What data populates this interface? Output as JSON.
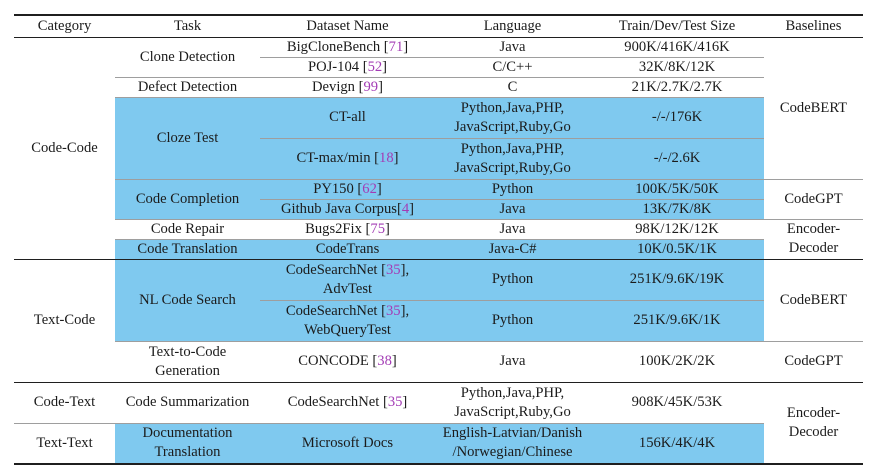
{
  "table": {
    "columns": [
      "Category",
      "Task",
      "Dataset Name",
      "Language",
      "Train/Dev/Test Size",
      "Baselines"
    ],
    "rows": [
      {
        "category": "Code-Code",
        "task": [
          "Clone Detection"
        ],
        "dataset": {
          "pre": "BigCloneBench [",
          "cite": "71",
          "post": "]"
        },
        "language": [
          "Java"
        ],
        "size": "900K/416K/416K",
        "baseline": [
          "CodeBERT"
        ]
      },
      {
        "dataset": {
          "pre": "POJ-104 [",
          "cite": "52",
          "post": "]"
        },
        "language": [
          "C/C++"
        ],
        "size": "32K/8K/12K"
      },
      {
        "task": [
          "Defect Detection"
        ],
        "dataset": {
          "pre": "Devign [",
          "cite": "99",
          "post": "]"
        },
        "language": [
          "C"
        ],
        "size": "21K/2.7K/2.7K"
      },
      {
        "task": [
          "Cloze Test"
        ],
        "dataset": {
          "pre": "CT-all"
        },
        "language": [
          "Python,Java,PHP,",
          "JavaScript,Ruby,Go"
        ],
        "size": "-/-/176K"
      },
      {
        "dataset": {
          "pre": "CT-max/min [",
          "cite": "18",
          "post": "]"
        },
        "language": [
          "Python,Java,PHP,",
          "JavaScript,Ruby,Go"
        ],
        "size": "-/-/2.6K"
      },
      {
        "task": [
          "Code Completion"
        ],
        "dataset": {
          "pre": "PY150 [",
          "cite": "62",
          "post": "]"
        },
        "language": [
          "Python"
        ],
        "size": "100K/5K/50K",
        "baseline": [
          "CodeGPT"
        ]
      },
      {
        "dataset": {
          "pre": "Github Java Corpus[",
          "cite": "4",
          "post": "]"
        },
        "language": [
          "Java"
        ],
        "size": "13K/7K/8K"
      },
      {
        "task": [
          "Code Repair"
        ],
        "dataset": {
          "pre": "Bugs2Fix [",
          "cite": "75",
          "post": "]"
        },
        "language": [
          "Java"
        ],
        "size": "98K/12K/12K",
        "baseline": [
          "Encoder-",
          "Decoder"
        ]
      },
      {
        "task": [
          "Code Translation"
        ],
        "dataset": {
          "pre": "CodeTrans"
        },
        "language": [
          "Java-C#"
        ],
        "size": "10K/0.5K/1K"
      },
      {
        "category": "Text-Code",
        "task": [
          "NL Code Search"
        ],
        "dataset": {
          "pre": "CodeSearchNet [",
          "cite": "35",
          "post": "],",
          "line2": "AdvTest"
        },
        "language": [
          "Python"
        ],
        "size": "251K/9.6K/19K",
        "baseline": [
          "CodeBERT"
        ]
      },
      {
        "dataset": {
          "pre": "CodeSearchNet [",
          "cite": "35",
          "post": "],",
          "line2": "WebQueryTest"
        },
        "language": [
          "Python"
        ],
        "size": "251K/9.6K/1K"
      },
      {
        "task": [
          "Text-to-Code",
          "Generation"
        ],
        "dataset": {
          "pre": "CONCODE [",
          "cite": "38",
          "post": "]"
        },
        "language": [
          "Java"
        ],
        "size": "100K/2K/2K",
        "baseline": [
          "CodeGPT"
        ]
      },
      {
        "category": "Code-Text",
        "task": [
          "Code Summarization"
        ],
        "dataset": {
          "pre": "CodeSearchNet [",
          "cite": "35",
          "post": "]"
        },
        "language": [
          "Python,Java,PHP,",
          "JavaScript,Ruby,Go"
        ],
        "size": "908K/45K/53K",
        "baseline": [
          "Encoder-",
          "Decoder"
        ]
      },
      {
        "category": "Text-Text",
        "task": [
          "Documentation",
          "Translation"
        ],
        "dataset": {
          "pre": "Microsoft Docs"
        },
        "language": [
          "English-Latvian/Danish",
          "/Norwegian/Chinese"
        ],
        "size": "156K/4K/4K"
      }
    ]
  },
  "colors": {
    "highlight": "#7fc9ef",
    "citation": "#a33cb5",
    "rule_dark": "#1f1f1f",
    "rule_gray": "#9e9e9e",
    "text": "#1b1b1b"
  }
}
